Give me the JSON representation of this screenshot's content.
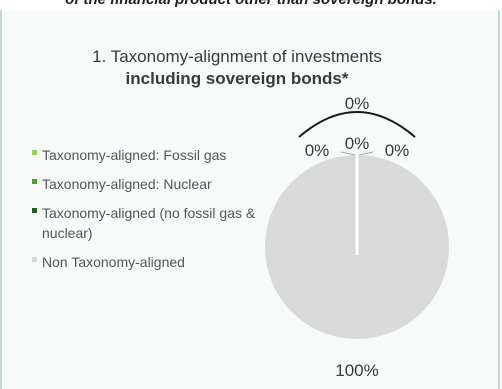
{
  "header": {
    "banner_text": "of the financial product other than sovereign bonds."
  },
  "chart_data": {
    "type": "pie",
    "title": "1. Taxonomy-alignment of investments",
    "subtitle": "including sovereign bonds*",
    "categories": [
      "Taxonomy-aligned: Fossil gas",
      "Taxonomy-aligned: Nuclear",
      "Taxonomy-aligned (no fossil gas & nuclear)",
      "Non Taxonomy-aligned"
    ],
    "values": [
      0,
      0,
      0,
      100
    ],
    "colors": [
      "#92d050",
      "#4f9e3a",
      "#1e5e20",
      "#d9d9d9"
    ],
    "data_labels": [
      "0%",
      "0%",
      "0%",
      "100%"
    ],
    "bracket_label": "0%",
    "legend_position": "left"
  }
}
